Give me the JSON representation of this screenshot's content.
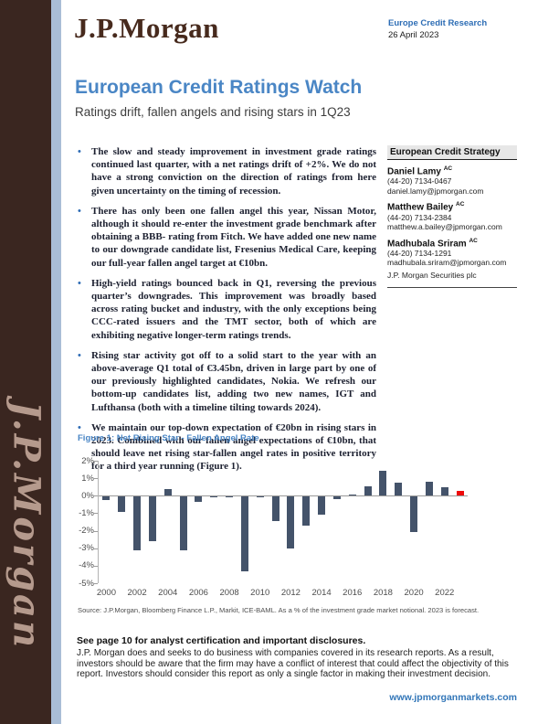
{
  "page": {
    "logo": "J.P.Morgan",
    "signature": "J.P.Morgan",
    "header_right": {
      "dept": "Europe Credit Research",
      "date": "26 April 2023"
    },
    "title": "European Credit Ratings Watch",
    "subtitle": "Ratings drift, fallen angels and rising stars in 1Q23"
  },
  "bullets": [
    "The slow and steady improvement in investment grade ratings continued last quarter, with a net ratings drift of +2%. We do not have a strong conviction on the direction of ratings from here given uncertainty on the timing of recession.",
    "There has only been one fallen angel this year, Nissan Motor, although it should re-enter the investment grade benchmark after obtaining a BBB- rating from Fitch. We have added one new name to our downgrade candidate list, Fresenius Medical Care, keeping our full-year fallen angel target at €10bn.",
    "High-yield ratings bounced back in Q1, reversing the previous quarter’s downgrades. This improvement was broadly based across rating bucket and industry, with the only exceptions being CCC-rated issuers and the TMT sector, both of which are exhibiting negative longer-term ratings trends.",
    "Rising star activity got off to a solid start to the year with an above-average Q1 total of €3.45bn, driven in large part by one of our previously highlighted candidates, Nokia. We refresh our bottom-up candidates list, adding two new names, IGT and Lufthansa (both with a timeline tilting towards 2024).",
    "We maintain our top-down expectation of €20bn in rising stars in 2023. Combined with our fallen angel expectations of €10bn, that should leave net rising star-fallen angel rates in positive territory for a third year running (Figure 1)."
  ],
  "analysts": {
    "section_title": "European Credit Strategy",
    "people": [
      {
        "name": "Daniel Lamy",
        "designation": "AC",
        "phone": "(44-20) 7134-0467",
        "email": "daniel.lamy@jpmorgan.com"
      },
      {
        "name": "Matthew Bailey",
        "designation": "AC",
        "phone": "(44-20) 7134-2384",
        "email": "matthew.a.bailey@jpmorgan.com"
      },
      {
        "name": "Madhubala Sriram",
        "designation": "AC",
        "phone": "(44-20) 7134-1291",
        "email": "madhubala.sriram@jpmorgan.com"
      }
    ],
    "entity": "J.P. Morgan Securities plc"
  },
  "chart_data": {
    "type": "bar",
    "title": "Figure 1: Net Rising Star - Fallen Angel Rate",
    "categories": [
      2000,
      2001,
      2002,
      2003,
      2004,
      2005,
      2006,
      2007,
      2008,
      2009,
      2010,
      2011,
      2012,
      2013,
      2014,
      2015,
      2016,
      2017,
      2018,
      2019,
      2020,
      2021,
      2022,
      2023
    ],
    "values": [
      -0.25,
      -0.95,
      -3.1,
      -2.6,
      0.4,
      -3.1,
      -0.35,
      -0.1,
      -0.1,
      -4.3,
      -0.1,
      -1.45,
      -3.0,
      -1.7,
      -1.1,
      -0.2,
      0.05,
      0.55,
      1.45,
      0.75,
      -2.1,
      0.8,
      0.5,
      0.3
    ],
    "highlight_index": 23,
    "bar_color": "#44536a",
    "highlight_color": "#ee0a0a",
    "ylim": [
      -5,
      2
    ],
    "yticks": [
      2,
      1,
      0,
      -1,
      -2,
      -3,
      -4,
      -5
    ],
    "ytick_suffix": "%",
    "xticks": [
      2000,
      2002,
      2004,
      2006,
      2008,
      2010,
      2012,
      2014,
      2016,
      2018,
      2020,
      2022
    ],
    "grid": false,
    "legend": "none",
    "xlabel": "",
    "ylabel": "",
    "source": "Source: J.P.Morgan, Bloomberg Finance L.P., Markit, ICE-BAML.  As a % of the investment grade market notional. 2023 is forecast."
  },
  "footer": {
    "disclosure_bold": "See page 10 for analyst certification and important disclosures.",
    "disclaimer": "J.P. Morgan does and seeks to do business with companies covered in its research reports. As a result, investors should be aware that the firm may have a conflict of interest that could affect the objectivity of this report. Investors should consider this report as only a single factor in making their investment decision.",
    "url": "www.jpmorganmarkets.com"
  }
}
